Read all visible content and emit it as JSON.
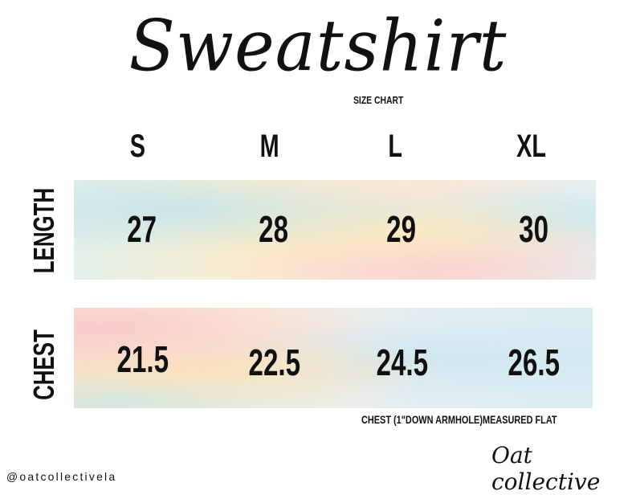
{
  "title": "Sweatshirt",
  "subtitle": "SIZE CHART",
  "sizes": [
    "S",
    "M",
    "L",
    "XL"
  ],
  "rows": [
    {
      "label": "LENGTH",
      "values": [
        "27",
        "28",
        "29",
        "30"
      ]
    },
    {
      "label": "CHEST",
      "values": [
        "21.5",
        "22.5",
        "24.5",
        "26.5"
      ]
    }
  ],
  "note": "CHEST (1\"DOWN ARMHOLE)MEASURED FLAT",
  "handle": "@oatcollectivela",
  "logo": "Oat collective"
}
